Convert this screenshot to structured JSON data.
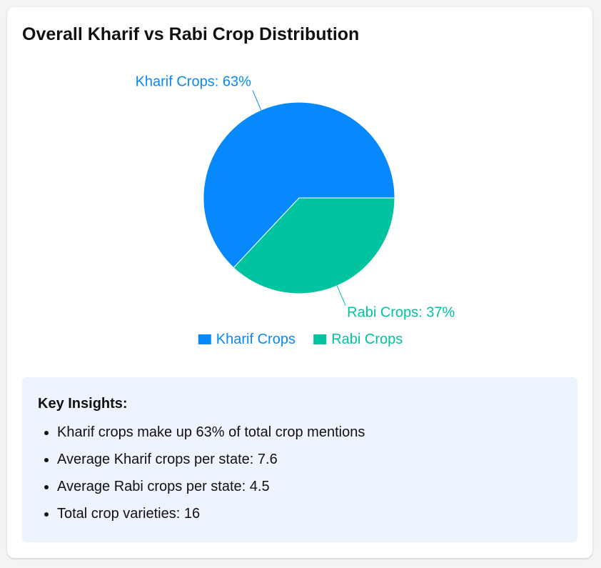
{
  "title": "Overall Kharif vs Rabi Crop Distribution",
  "chart_data": {
    "type": "pie",
    "title": "",
    "slices": [
      {
        "name": "Kharif Crops",
        "value": 63,
        "label": "Kharif Crops: 63%",
        "color": "#0788fc"
      },
      {
        "name": "Rabi Crops",
        "value": 37,
        "label": "Rabi Crops: 37%",
        "color": "#00c49f"
      }
    ],
    "legend": [
      "Kharif Crops",
      "Rabi Crops"
    ],
    "legend_position": "bottom"
  },
  "insights": {
    "heading": "Key Insights:",
    "items": [
      "Kharif crops make up 63% of total crop mentions",
      "Average Kharif crops per state: 7.6",
      "Average Rabi crops per state: 4.5",
      "Total crop varieties: 16"
    ]
  }
}
